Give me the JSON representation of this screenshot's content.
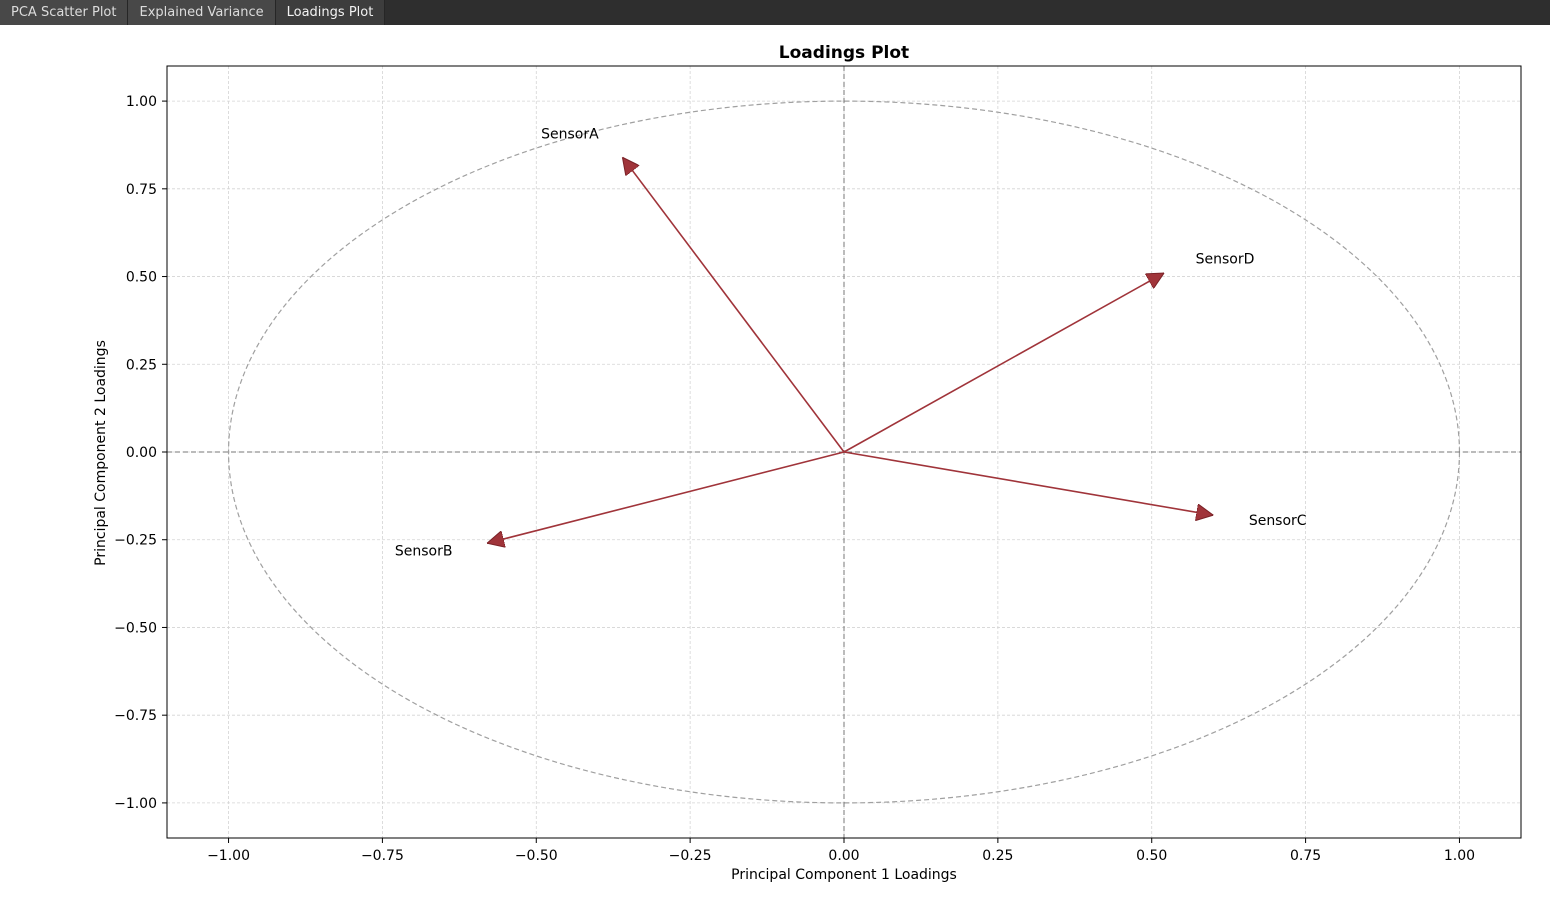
{
  "tabs": [
    {
      "label": "PCA Scatter Plot"
    },
    {
      "label": "Explained Variance"
    },
    {
      "label": "Loadings Plot"
    }
  ],
  "active_tab": 2,
  "chart_data": {
    "type": "scatter",
    "title": "Loadings Plot",
    "xlabel": "Principal Component 1 Loadings",
    "ylabel": "Principal Component 2 Loadings",
    "xlim": [
      -1.1,
      1.1
    ],
    "ylim": [
      -1.1,
      1.1
    ],
    "xticks": [
      -1.0,
      -0.75,
      -0.5,
      -0.25,
      0.0,
      0.25,
      0.5,
      0.75,
      1.0
    ],
    "yticks": [
      -1.0,
      -0.75,
      -0.5,
      -0.25,
      0.0,
      0.25,
      0.5,
      0.75,
      1.0
    ],
    "xtick_labels": [
      "−1.00",
      "−0.75",
      "−0.50",
      "−0.25",
      "0.00",
      "0.25",
      "0.50",
      "0.75",
      "1.00"
    ],
    "ytick_labels": [
      "−1.00",
      "−0.75",
      "−0.50",
      "−0.25",
      "0.00",
      "0.25",
      "0.50",
      "0.75",
      "1.00"
    ],
    "grid": true,
    "unit_circle": true,
    "arrow_color": "#a0343a",
    "loadings": [
      {
        "label": "SensorA",
        "x": -0.36,
        "y": 0.84
      },
      {
        "label": "SensorB",
        "x": -0.58,
        "y": -0.26
      },
      {
        "label": "SensorC",
        "x": 0.6,
        "y": -0.18
      },
      {
        "label": "SensorD",
        "x": 0.52,
        "y": 0.51
      }
    ]
  }
}
